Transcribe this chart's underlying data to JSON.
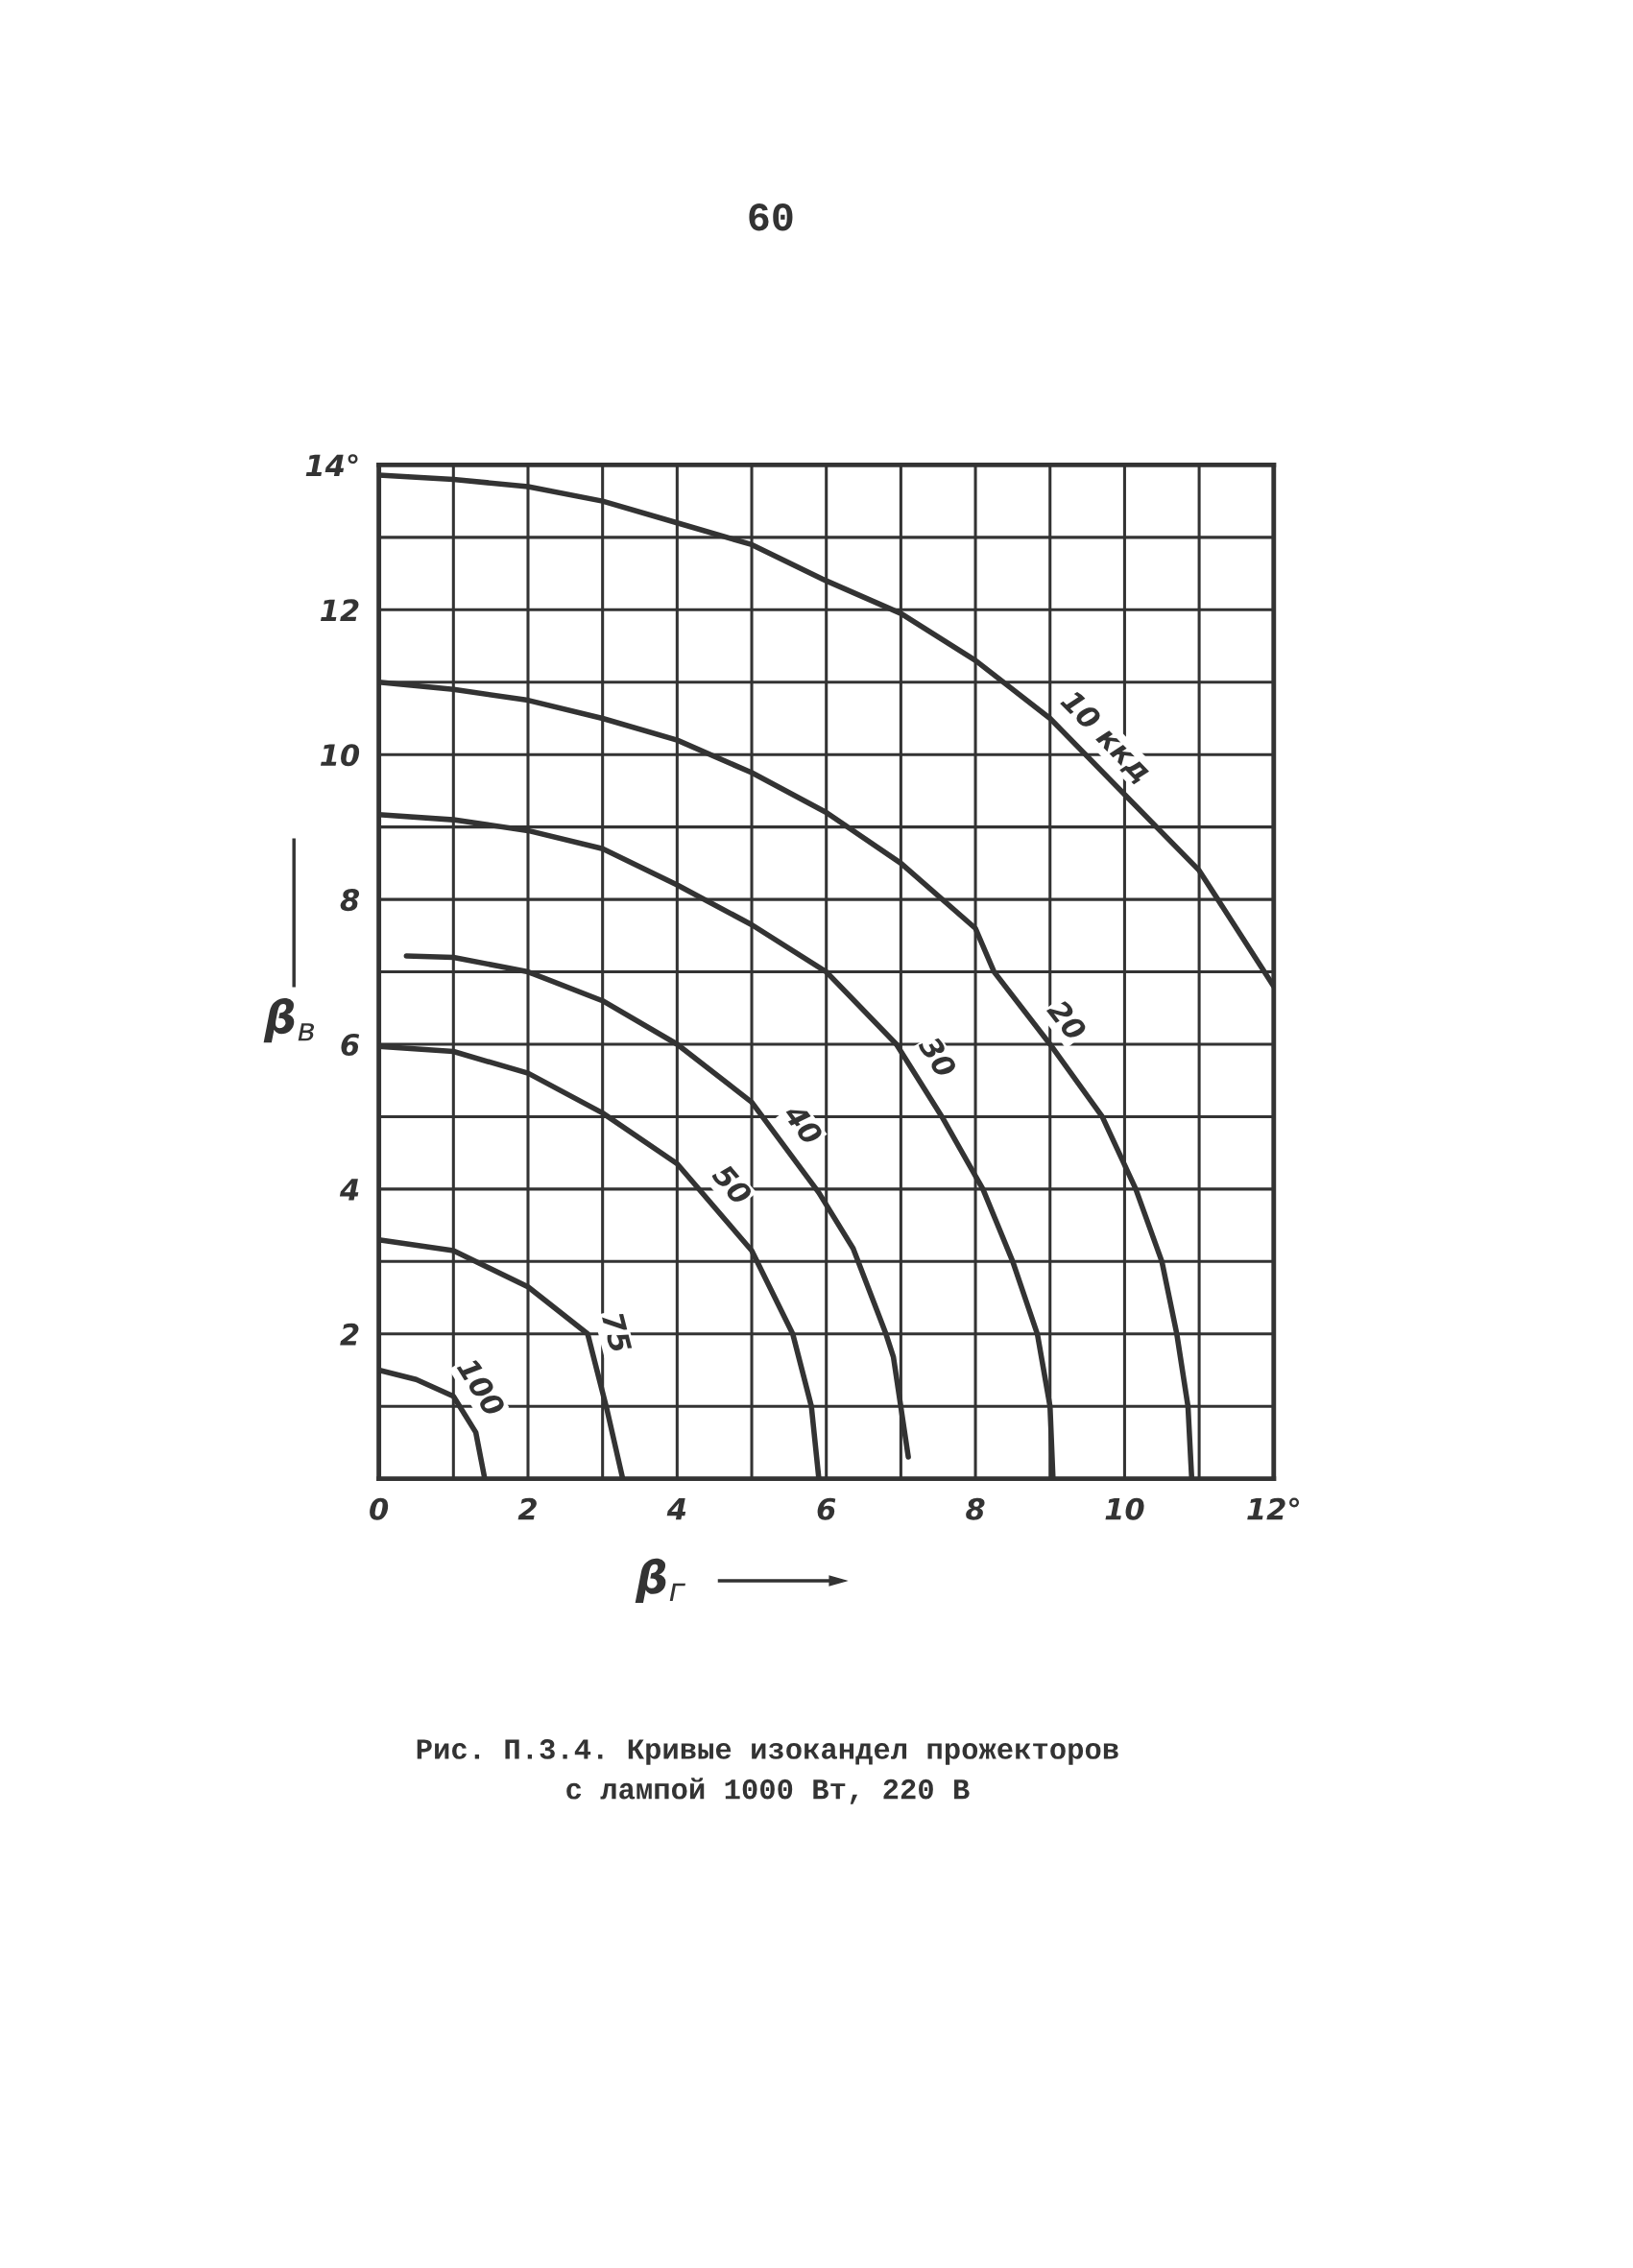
{
  "chart_data": {
    "type": "line",
    "xlabel": "β$_{г}$",
    "ylabel": "β$_{в}$",
    "xlim": [
      0,
      12
    ],
    "ylim": [
      0,
      14
    ],
    "xticks": [
      0,
      {
        "value": 1,
        "label": null
      },
      2,
      {
        "value": 3,
        "label": null
      },
      4,
      {
        "value": 5,
        "label": null
      },
      6,
      {
        "value": 7,
        "label": null
      },
      8,
      {
        "value": 9,
        "label": null
      },
      10,
      {
        "value": 11,
        "label": null
      },
      {
        "value": 12,
        "label": "12°"
      }
    ],
    "yticks": [
      {
        "value": 0,
        "label": null
      },
      {
        "value": 1,
        "label": null
      },
      2,
      {
        "value": 3,
        "label": null
      },
      4,
      {
        "value": 5,
        "label": null
      },
      6,
      {
        "value": 7,
        "label": null
      },
      8,
      {
        "value": 9,
        "label": null
      },
      10,
      {
        "value": 11,
        "label": null
      },
      12,
      {
        "value": 13,
        "label": null
      },
      {
        "value": 14,
        "label": "14°"
      }
    ],
    "grid": true,
    "marker": "none",
    "line_style": "solid",
    "legend": false,
    "series": [
      {
        "name": "10 ккд",
        "color": "#333333",
        "x": [
          0,
          1,
          2,
          3,
          4,
          5,
          6,
          7,
          8,
          9,
          10,
          11,
          12
        ],
        "values": [
          13.86,
          13.8,
          13.7,
          13.5,
          13.2,
          12.9,
          12.4,
          11.95,
          11.3,
          10.5,
          9.45,
          8.4,
          6.8
        ]
      },
      {
        "name": "20",
        "color": "#333333",
        "x": [
          0,
          1,
          2,
          3,
          4,
          5,
          6,
          7,
          8,
          8.25,
          9.0,
          9.7,
          10.15,
          10.5,
          10.7,
          10.85,
          10.9
        ],
        "values": [
          11.0,
          10.9,
          10.75,
          10.5,
          10.2,
          9.75,
          9.2,
          8.5,
          7.6,
          7,
          6,
          5,
          4,
          3,
          2,
          1,
          0
        ]
      },
      {
        "name": "30",
        "color": "#333333",
        "x": [
          0,
          1,
          2,
          3,
          4,
          5,
          6,
          6.94,
          7.55,
          8.1,
          8.5,
          8.83,
          9.0,
          9.04
        ],
        "values": [
          9.17,
          9.1,
          8.95,
          8.7,
          8.2,
          7.65,
          7.0,
          6,
          5,
          4,
          3,
          2,
          1,
          0
        ]
      },
      {
        "name": "40",
        "color": "#333333",
        "x": [
          0.37,
          1,
          2,
          3,
          4,
          5,
          5.9,
          6.36,
          6.8,
          6.9,
          7.1
        ],
        "values": [
          7.22,
          7.2,
          7.0,
          6.6,
          6.0,
          5.2,
          3.95,
          3.18,
          2.0,
          1.68,
          0.3
        ]
      },
      {
        "name": "50",
        "color": "#333333",
        "x": [
          0,
          1,
          2,
          3,
          4,
          5,
          5.55,
          5.8,
          5.9
        ],
        "values": [
          5.97,
          5.9,
          5.6,
          5.05,
          4.35,
          3.15,
          2,
          1,
          0
        ]
      },
      {
        "name": "75",
        "color": "#333333",
        "x": [
          0,
          1,
          2,
          2.8,
          3.06,
          3.27
        ],
        "values": [
          3.3,
          3.15,
          2.65,
          2.0,
          0.95,
          0
        ]
      },
      {
        "name": "100",
        "color": "#333333",
        "x": [
          0,
          0.5,
          1,
          1.3,
          1.42
        ],
        "values": [
          1.5,
          1.37,
          1.14,
          0.64,
          0
        ]
      }
    ],
    "annotations": [
      "60",
      "Рис. П.3.4. Кривые изокандел прожекторов\nс лампой 1000 Вт, 220 В"
    ]
  }
}
